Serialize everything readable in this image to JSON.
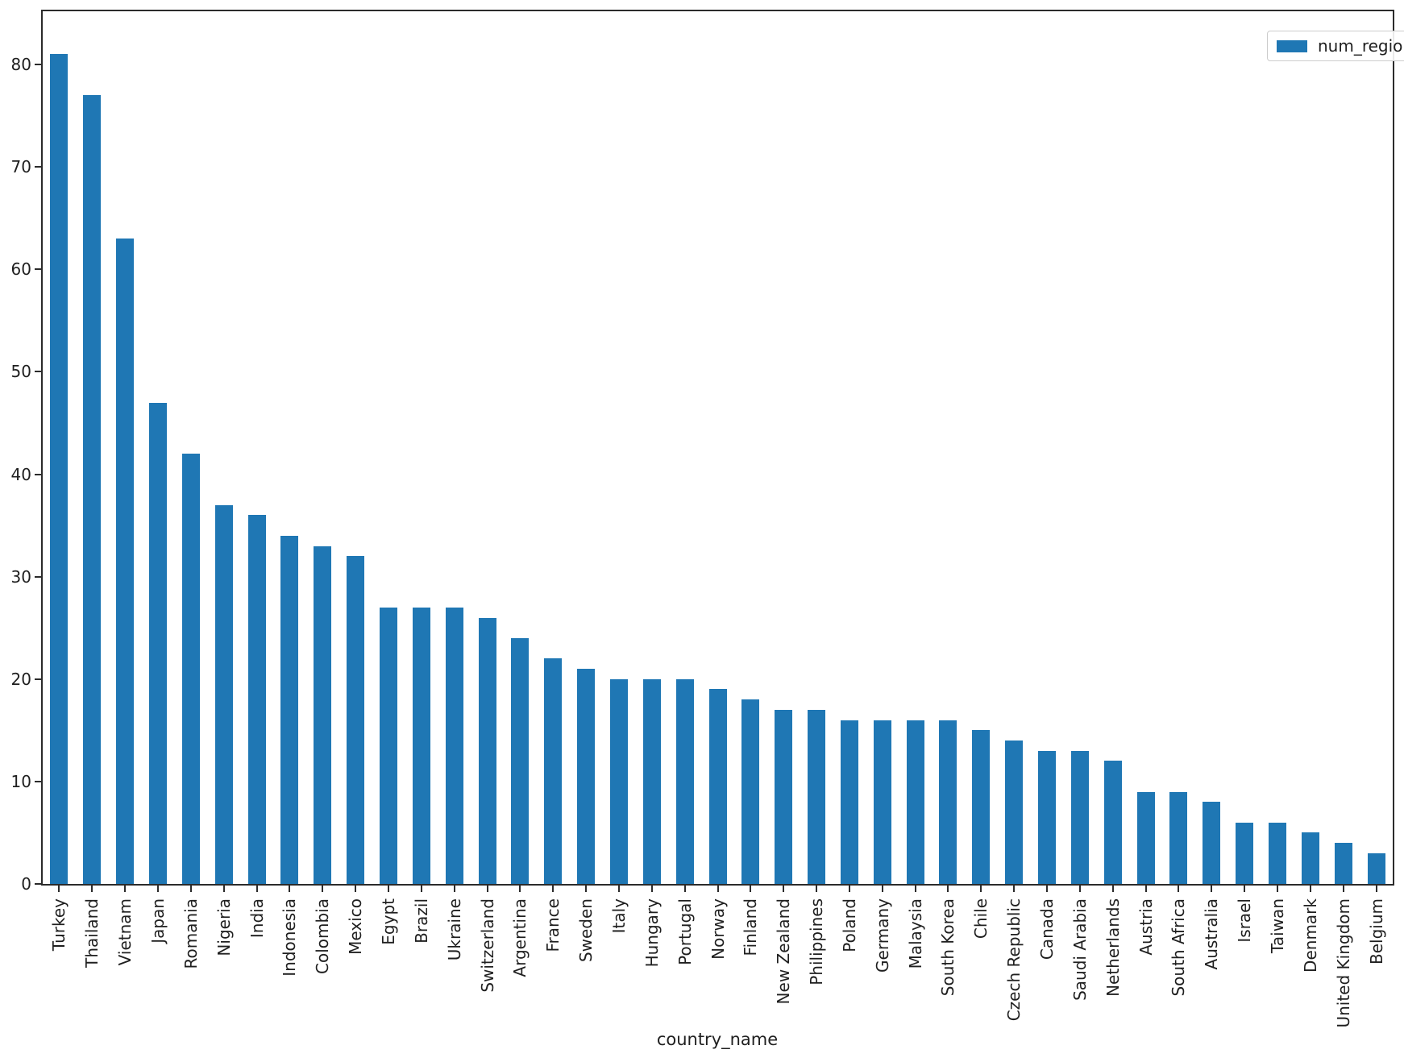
{
  "chart_data": {
    "type": "bar",
    "title": "",
    "xlabel": "country_name",
    "ylabel": "",
    "legend_label": "num_regions",
    "legend_position": "upper right",
    "grid": false,
    "bar_color": "#1f77b4",
    "axis_color": "#2b2b2b",
    "ylim": [
      0,
      85.2
    ],
    "yticks": [
      0,
      10,
      20,
      30,
      40,
      50,
      60,
      70,
      80
    ],
    "categories": [
      "Turkey",
      "Thailand",
      "Vietnam",
      "Japan",
      "Romania",
      "Nigeria",
      "India",
      "Indonesia",
      "Colombia",
      "Mexico",
      "Egypt",
      "Brazil",
      "Ukraine",
      "Switzerland",
      "Argentina",
      "France",
      "Sweden",
      "Italy",
      "Hungary",
      "Portugal",
      "Norway",
      "Finland",
      "New Zealand",
      "Philippines",
      "Poland",
      "Germany",
      "Malaysia",
      "South Korea",
      "Chile",
      "Czech Republic",
      "Canada",
      "Saudi Arabia",
      "Netherlands",
      "Austria",
      "South Africa",
      "Australia",
      "Israel",
      "Taiwan",
      "Denmark",
      "United Kingdom",
      "Belgium"
    ],
    "series": [
      {
        "name": "num_regions",
        "values": [
          81,
          77,
          63,
          47,
          42,
          37,
          36,
          34,
          33,
          32,
          27,
          27,
          27,
          26,
          24,
          22,
          21,
          20,
          20,
          20,
          19,
          18,
          17,
          17,
          16,
          16,
          16,
          16,
          15,
          14,
          13,
          13,
          12,
          9,
          9,
          8,
          6,
          6,
          5,
          4,
          3
        ]
      }
    ]
  }
}
